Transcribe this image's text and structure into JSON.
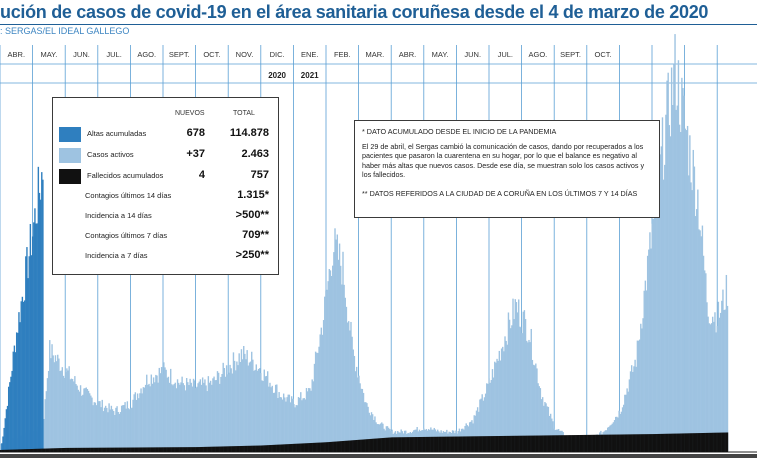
{
  "title": "ución de casos de covid-19 en el área sanitaria coruñesa desde el 4 de marzo de 2020",
  "source": ": SERGAS/EL IDEAL GALLEGO",
  "months": [
    "ABR.",
    "MAY.",
    "JUN.",
    "JUL.",
    "AGO.",
    "SEPT.",
    "OCT.",
    "NOV.",
    "DIC.",
    "ENE.",
    "FEB.",
    "MAR.",
    "ABR.",
    "MAY.",
    "JUN.",
    "JUL.",
    "AGO.",
    "SEPT.",
    "OCT."
  ],
  "years": [
    "2020",
    "2021"
  ],
  "colors": {
    "altas": "#2f7fbf",
    "activos": "#9ec3e1",
    "fallecidos": "#111111",
    "title": "#1f5f96",
    "grid": "#5a9fd4"
  },
  "legend": {
    "header_nuevos": "NUEVOS",
    "header_total": "TOTAL",
    "rows": [
      {
        "label": "Altas acumuladas",
        "nuevos": "678",
        "total": "114.878",
        "swatch": "altas"
      },
      {
        "label": "Casos activos",
        "nuevos": "+37",
        "total": "2.463",
        "swatch": "activos"
      },
      {
        "label": "Fallecidos acumulados",
        "nuevos": "4",
        "total": "757",
        "swatch": "fallecidos"
      },
      {
        "label": "Contagios últimos 14 días",
        "nuevos": "",
        "total": "1.315*",
        "swatch": ""
      },
      {
        "label": "Incidencia a 14 días",
        "nuevos": "",
        "total": ">500**",
        "swatch": ""
      },
      {
        "label": "Contagios últimos 7 días",
        "nuevos": "",
        "total": "709**",
        "swatch": ""
      },
      {
        "label": "Incidencia a 7 días",
        "nuevos": "",
        "total": ">250**",
        "swatch": ""
      }
    ]
  },
  "notes": {
    "n1": "* DATO ACUMULADO DESDE EL INICIO DE LA PANDEMIA",
    "n2": "El 29 de abril, el Sergas cambió la comunicación de casos, dando por recuperados a los pacientes que pasaron la cuarentena en su hogar, por lo que el balance es negativo al haber más altas que nuevos casos. Desde ese día, se muestran solo los casos activos y los fallecidos.",
    "n3": "** DATOS REFERIDOS A LA CIUDAD DE A CORUÑA EN LOS ÚLTIMOS 7 Y 14 DÍAS"
  },
  "chart_data": {
    "type": "area",
    "x_unit": "meses (marzo 2020 – octubre 2021)",
    "series": [
      {
        "name": "Altas acumuladas",
        "points": [
          [
            0.0,
            0.0
          ],
          [
            0.5,
            0.3
          ],
          [
            1.0,
            0.55
          ],
          [
            1.3,
            0.7
          ]
        ]
      },
      {
        "name": "Casos activos",
        "points": [
          [
            0.0,
            0.02
          ],
          [
            1.3,
            0.06
          ],
          [
            1.5,
            0.25
          ],
          [
            2.0,
            0.2
          ],
          [
            2.5,
            0.15
          ],
          [
            3.0,
            0.12
          ],
          [
            3.5,
            0.1
          ],
          [
            4.0,
            0.12
          ],
          [
            4.5,
            0.18
          ],
          [
            5.0,
            0.2
          ],
          [
            5.5,
            0.17
          ],
          [
            6.0,
            0.16
          ],
          [
            6.5,
            0.17
          ],
          [
            7.0,
            0.21
          ],
          [
            7.4,
            0.24
          ],
          [
            7.8,
            0.22
          ],
          [
            8.2,
            0.18
          ],
          [
            8.6,
            0.14
          ],
          [
            9.0,
            0.12
          ],
          [
            9.5,
            0.15
          ],
          [
            9.9,
            0.33
          ],
          [
            10.2,
            0.51
          ],
          [
            10.5,
            0.45
          ],
          [
            10.8,
            0.25
          ],
          [
            11.2,
            0.12
          ],
          [
            11.6,
            0.07
          ],
          [
            12.0,
            0.05
          ],
          [
            12.5,
            0.05
          ],
          [
            13.0,
            0.06
          ],
          [
            13.5,
            0.05
          ],
          [
            14.0,
            0.05
          ],
          [
            14.5,
            0.08
          ],
          [
            15.0,
            0.17
          ],
          [
            15.5,
            0.29
          ],
          [
            15.8,
            0.36
          ],
          [
            16.2,
            0.3
          ],
          [
            16.6,
            0.14
          ],
          [
            17.0,
            0.06
          ],
          [
            17.5,
            0.03
          ],
          [
            18.0,
            0.03
          ],
          [
            18.5,
            0.05
          ],
          [
            19.0,
            0.1
          ],
          [
            19.5,
            0.23
          ],
          [
            20.0,
            0.55
          ],
          [
            20.4,
            0.8
          ],
          [
            20.7,
            0.94
          ],
          [
            21.0,
            0.8
          ],
          [
            21.4,
            0.62
          ],
          [
            21.7,
            0.35
          ],
          [
            22.0,
            0.33
          ],
          [
            22.3,
            0.4
          ]
        ]
      },
      {
        "name": "Fallecidos acumulados",
        "points": [
          [
            0.0,
            0.005
          ],
          [
            2.0,
            0.01
          ],
          [
            6.0,
            0.012
          ],
          [
            8.0,
            0.016
          ],
          [
            10.0,
            0.024
          ],
          [
            12.0,
            0.036
          ],
          [
            16.0,
            0.04
          ],
          [
            20.0,
            0.044
          ],
          [
            22.3,
            0.048
          ]
        ]
      }
    ]
  }
}
